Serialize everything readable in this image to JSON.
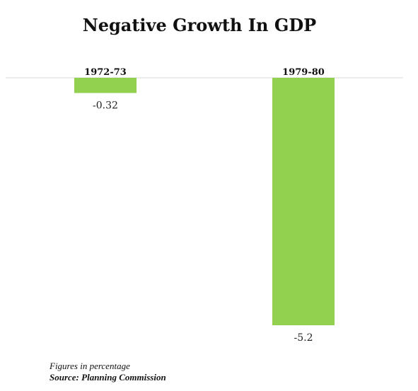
{
  "chart_data": {
    "type": "bar",
    "title": "Negative Growth In GDP",
    "categories": [
      "1972-73",
      "1979-80"
    ],
    "values": [
      -0.32,
      -5.2
    ],
    "value_labels": [
      "-0.32",
      "-5.2"
    ],
    "ylim": [
      -5.2,
      0
    ],
    "bar_color": "#92d050",
    "baseline_color": "#d9d9d9",
    "grid": false,
    "legend": "none"
  },
  "footnote": {
    "figures": "Figures in percentage",
    "source": "Source: Planning Commission"
  }
}
